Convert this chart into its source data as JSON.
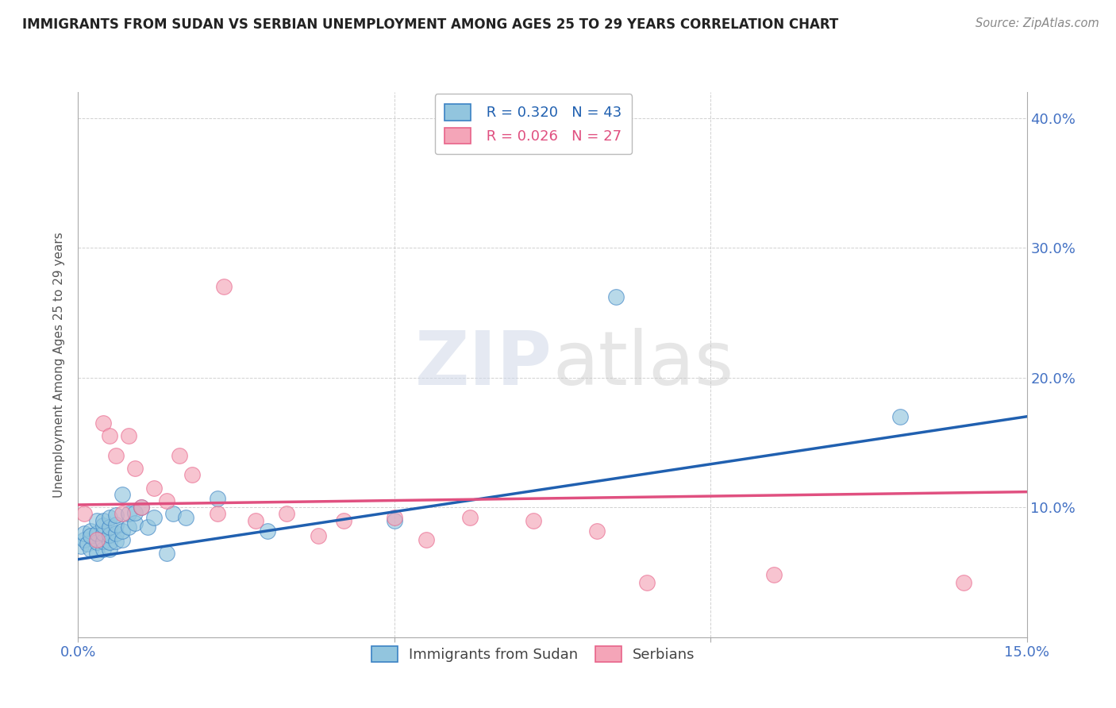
{
  "title": "IMMIGRANTS FROM SUDAN VS SERBIAN UNEMPLOYMENT AMONG AGES 25 TO 29 YEARS CORRELATION CHART",
  "source": "Source: ZipAtlas.com",
  "ylabel": "Unemployment Among Ages 25 to 29 years",
  "xlim": [
    0.0,
    0.15
  ],
  "ylim": [
    0.0,
    0.42
  ],
  "x_ticks": [
    0.0,
    0.05,
    0.1,
    0.15
  ],
  "y_ticks": [
    0.0,
    0.1,
    0.2,
    0.3,
    0.4
  ],
  "y_tick_labels_right": [
    "",
    "10.0%",
    "20.0%",
    "30.0%",
    "40.0%"
  ],
  "x_tick_labels": [
    "0.0%",
    "",
    "",
    "15.0%"
  ],
  "blue_R": "0.320",
  "blue_N": "43",
  "pink_R": "0.026",
  "pink_N": "27",
  "blue_color": "#92c5de",
  "pink_color": "#f4a5b8",
  "blue_edge_color": "#3b82c4",
  "pink_edge_color": "#e8638a",
  "blue_line_color": "#2060b0",
  "pink_line_color": "#e05080",
  "legend_label_blue": "Immigrants from Sudan",
  "legend_label_pink": "Serbians",
  "blue_points_x": [
    0.0005,
    0.001,
    0.001,
    0.0015,
    0.002,
    0.002,
    0.002,
    0.003,
    0.003,
    0.003,
    0.003,
    0.004,
    0.004,
    0.004,
    0.004,
    0.004,
    0.005,
    0.005,
    0.005,
    0.005,
    0.005,
    0.006,
    0.006,
    0.006,
    0.006,
    0.007,
    0.007,
    0.007,
    0.008,
    0.008,
    0.009,
    0.009,
    0.01,
    0.011,
    0.012,
    0.014,
    0.015,
    0.017,
    0.022,
    0.03,
    0.05,
    0.085,
    0.13
  ],
  "blue_points_y": [
    0.07,
    0.075,
    0.08,
    0.072,
    0.082,
    0.068,
    0.078,
    0.065,
    0.073,
    0.08,
    0.09,
    0.068,
    0.074,
    0.08,
    0.086,
    0.09,
    0.068,
    0.073,
    0.079,
    0.085,
    0.092,
    0.074,
    0.08,
    0.087,
    0.094,
    0.075,
    0.082,
    0.11,
    0.085,
    0.095,
    0.088,
    0.096,
    0.1,
    0.085,
    0.092,
    0.065,
    0.095,
    0.092,
    0.107,
    0.082,
    0.09,
    0.262,
    0.17
  ],
  "pink_points_x": [
    0.001,
    0.003,
    0.004,
    0.005,
    0.006,
    0.007,
    0.008,
    0.009,
    0.01,
    0.012,
    0.014,
    0.016,
    0.018,
    0.022,
    0.023,
    0.028,
    0.033,
    0.038,
    0.042,
    0.05,
    0.055,
    0.062,
    0.072,
    0.082,
    0.09,
    0.11,
    0.14
  ],
  "pink_points_y": [
    0.095,
    0.075,
    0.165,
    0.155,
    0.14,
    0.095,
    0.155,
    0.13,
    0.1,
    0.115,
    0.105,
    0.14,
    0.125,
    0.095,
    0.27,
    0.09,
    0.095,
    0.078,
    0.09,
    0.092,
    0.075,
    0.092,
    0.09,
    0.082,
    0.042,
    0.048,
    0.042
  ],
  "blue_line_x": [
    0.0,
    0.15
  ],
  "blue_line_y": [
    0.06,
    0.17
  ],
  "pink_line_x": [
    0.0,
    0.15
  ],
  "pink_line_y": [
    0.102,
    0.112
  ],
  "watermark_zip": "ZIP",
  "watermark_atlas": "atlas",
  "bg_color": "#ffffff",
  "grid_color": "#cccccc",
  "tick_color": "#4472c4",
  "label_color": "#555555"
}
